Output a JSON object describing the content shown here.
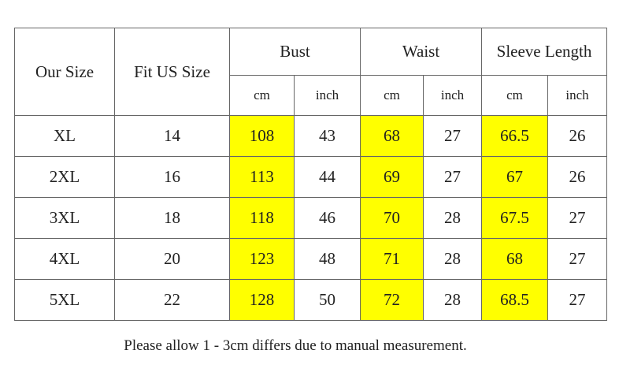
{
  "table": {
    "header": [
      "Our Size",
      "Fit US Size",
      "Bust",
      "Waist",
      "Sleeve Length"
    ],
    "units": [
      "cm",
      "inch",
      "cm",
      "inch",
      "cm",
      "inch"
    ],
    "rows": [
      [
        "XL",
        "14",
        "108",
        "43",
        "68",
        "27",
        "66.5",
        "26"
      ],
      [
        "2XL",
        "16",
        "113",
        "44",
        "69",
        "27",
        "67",
        "26"
      ],
      [
        "3XL",
        "18",
        "118",
        "46",
        "70",
        "28",
        "67.5",
        "27"
      ],
      [
        "4XL",
        "20",
        "123",
        "48",
        "71",
        "28",
        "68",
        "27"
      ],
      [
        "5XL",
        "22",
        "128",
        "50",
        "72",
        "28",
        "68.5",
        "27"
      ]
    ]
  },
  "note": "Please allow 1 - 3cm differs due to manual measurement."
}
